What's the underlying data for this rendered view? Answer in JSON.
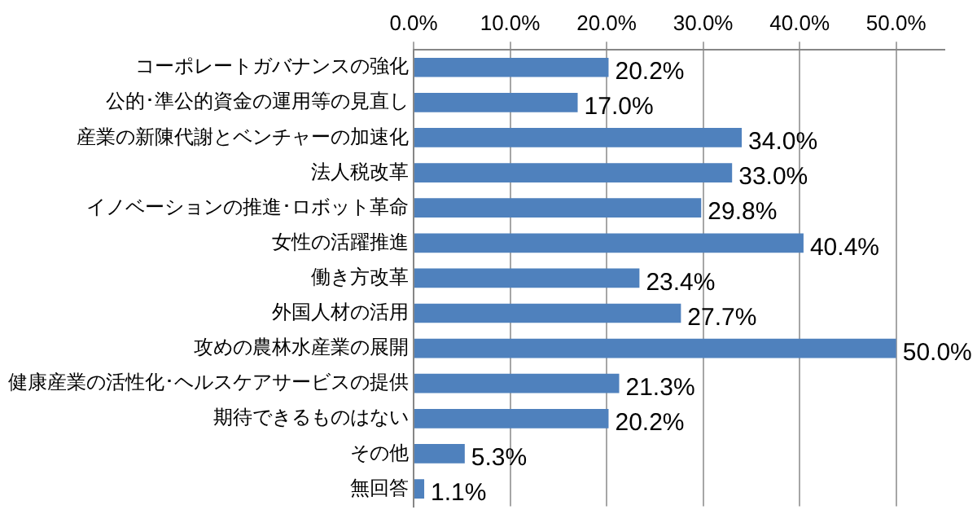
{
  "chart_data": {
    "type": "bar",
    "orientation": "horizontal",
    "categories": [
      "コーポレートガバナンスの強化",
      "公的･準公的資金の運用等の見直し",
      "産業の新陳代謝とベンチャーの加速化",
      "法人税改革",
      "イノベーションの推進･ロボット革命",
      "女性の活躍推進",
      "働き方改革",
      "外国人材の活用",
      "攻めの農林水産業の展開",
      "健康産業の活性化･ヘルスケアサービスの提供",
      "期待できるものはない",
      "その他",
      "無回答"
    ],
    "values": [
      20.2,
      17.0,
      34.0,
      33.0,
      29.8,
      40.4,
      23.4,
      27.7,
      50.0,
      21.3,
      20.2,
      5.3,
      1.1
    ],
    "value_labels": [
      "20.2%",
      "17.0%",
      "34.0%",
      "33.0%",
      "29.8%",
      "40.4%",
      "23.4%",
      "27.7%",
      "50.0%",
      "21.3%",
      "20.2%",
      "5.3%",
      "1.1%"
    ],
    "color": "#4f81bd",
    "xlim": [
      0,
      55
    ],
    "xticks": [
      {
        "value": 0,
        "label": "0.0%"
      },
      {
        "value": 10,
        "label": "10.0%"
      },
      {
        "value": 20,
        "label": "20.0%"
      },
      {
        "value": 30,
        "label": "30.0%"
      },
      {
        "value": 40,
        "label": "40.0%"
      },
      {
        "value": 50,
        "label": "50.0%"
      }
    ],
    "grid": "x",
    "legend": false
  }
}
